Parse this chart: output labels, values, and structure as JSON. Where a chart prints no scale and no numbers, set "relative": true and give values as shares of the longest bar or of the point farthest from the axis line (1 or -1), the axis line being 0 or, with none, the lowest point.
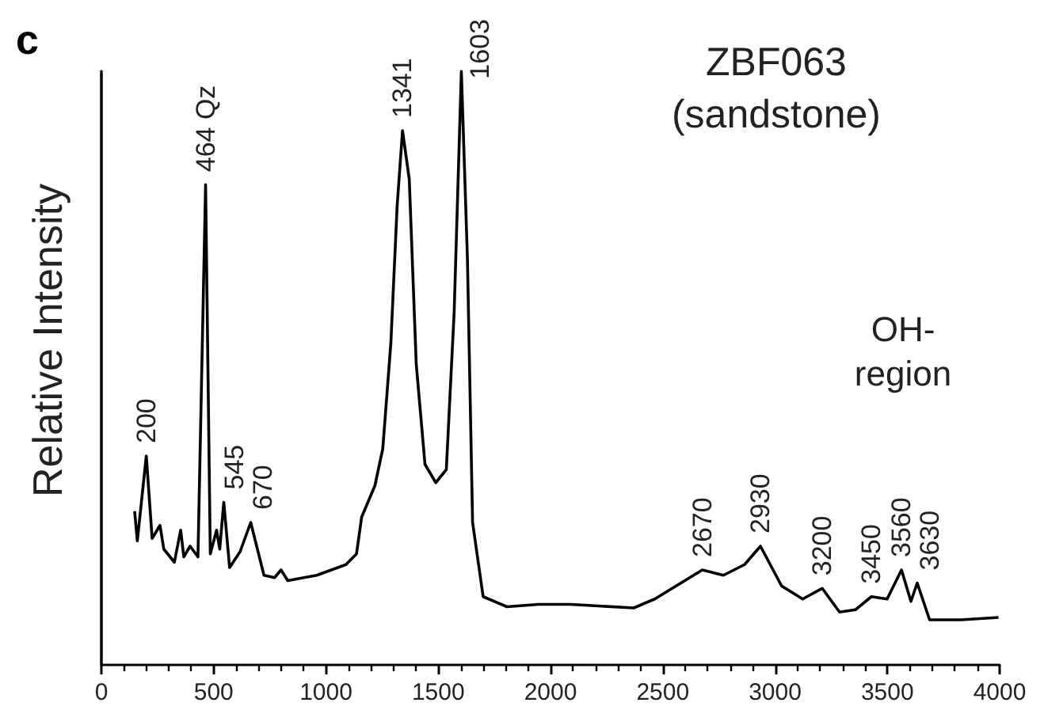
{
  "chart_data": {
    "type": "line",
    "title": "ZBF063",
    "subtitle": "(sandstone)",
    "ylabel": "Relative Intensity",
    "relative": true,
    "marker": "none",
    "line_style": "solid",
    "xlim": [
      0,
      4000
    ],
    "xticks": [
      0,
      500,
      {
        "value": 1000,
        "label": "1000"
      },
      {
        "value": 1500,
        "label": "1500"
      },
      {
        "value": 2000,
        "label": "2000"
      },
      {
        "value": 2500,
        "label": "2500"
      },
      {
        "value": 3000,
        "label": "3000"
      },
      {
        "value": 3500,
        "label": "3500"
      },
      {
        "value": 4000,
        "label": "4000"
      }
    ],
    "series": [
      {
        "color": "#000000",
        "x": [
          148,
          160,
          200,
          226,
          261,
          278,
          325,
          353,
          367,
          395,
          430,
          464,
          485,
          513,
          527,
          545,
          571,
          618,
          665,
          724,
          771,
          800,
          830,
          959,
          1089,
          1136,
          1159,
          1218,
          1253,
          1289,
          1317,
          1341,
          1371,
          1402,
          1441,
          1489,
          1536,
          1571,
          1603,
          1630,
          1653,
          1700,
          1806,
          1947,
          2088,
          2370,
          2464,
          2676,
          2770,
          2864,
          2935,
          3029,
          3123,
          3210,
          3287,
          3358,
          3429,
          3499,
          3563,
          3605,
          3633,
          3688,
          3829,
          3995
        ],
        "values": [
          0.259,
          0.209,
          0.352,
          0.213,
          0.235,
          0.195,
          0.173,
          0.227,
          0.182,
          0.2,
          0.182,
          0.809,
          0.187,
          0.227,
          0.195,
          0.274,
          0.164,
          0.191,
          0.24,
          0.151,
          0.147,
          0.16,
          0.142,
          0.151,
          0.169,
          0.187,
          0.249,
          0.302,
          0.364,
          0.542,
          0.773,
          0.9,
          0.818,
          0.507,
          0.338,
          0.307,
          0.329,
          0.595,
          1.0,
          0.684,
          0.24,
          0.115,
          0.098,
          0.102,
          0.102,
          0.096,
          0.111,
          0.16,
          0.151,
          0.169,
          0.2,
          0.133,
          0.111,
          0.129,
          0.089,
          0.093,
          0.115,
          0.111,
          0.16,
          0.107,
          0.138,
          0.076,
          0.076,
          0.08
        ]
      }
    ],
    "annotations": [
      "c",
      {
        "text": "200",
        "x": 200,
        "y": 0.352
      },
      {
        "text": "464 Qz",
        "x": 464,
        "y": 0.809
      },
      {
        "text": "545",
        "x": 545,
        "y": 0.274
      },
      {
        "text": "670",
        "x": 665,
        "y": 0.24
      },
      {
        "text": "1341",
        "x": 1341,
        "y": 0.9
      },
      {
        "text": "1603",
        "x": 1603,
        "y": 1.0
      },
      {
        "text": "2670",
        "x": 2676,
        "y": 0.16
      },
      {
        "text": "2930",
        "x": 2935,
        "y": 0.2
      },
      {
        "text": "3200",
        "x": 3210,
        "y": 0.129
      },
      {
        "text": "3450",
        "x": 3429,
        "y": 0.115
      },
      {
        "text": "3560",
        "x": 3563,
        "y": 0.16
      },
      {
        "text": "3630",
        "x": 3633,
        "y": 0.138
      },
      "OH-\nregion"
    ]
  }
}
